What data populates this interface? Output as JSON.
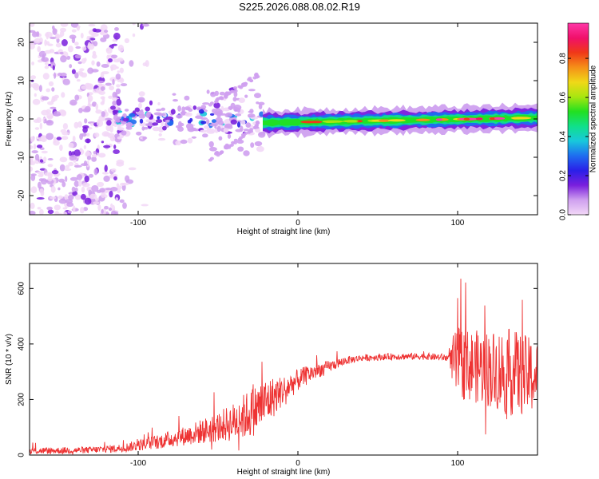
{
  "title": "S225.2026.088.08.02.R19",
  "chart_data": [
    {
      "type": "heatmap",
      "name": "spectrogram",
      "xlabel": "Height of straight line (km)",
      "ylabel": "Frequency (Hz)",
      "xlim": [
        -168,
        150
      ],
      "ylim": [
        -25,
        25
      ],
      "xticks": [
        -100,
        0,
        100
      ],
      "yticks": [
        -20,
        -10,
        0,
        10,
        20
      ],
      "colorbar": {
        "label": "Normalized spectral amplitude",
        "range": [
          0,
          0.98
        ],
        "ticks": [
          "0.0",
          "0.2",
          "0.4",
          "0.6",
          "0.8"
        ],
        "tick_values": [
          0,
          0.2,
          0.4,
          0.6,
          0.8
        ],
        "colors": [
          "#f2d8f7",
          "#cfa0ef",
          "#7a1fdd",
          "#2a1fe8",
          "#1e6df0",
          "#18c8dc",
          "#10e08a",
          "#22e020",
          "#a8e610",
          "#f0d818",
          "#f59018",
          "#f03818",
          "#f0106a",
          "#ff38a8"
        ]
      },
      "regions": [
        {
          "name": "noise",
          "x": [
            -168,
            -110
          ],
          "freq_spread_hz": 25,
          "amplitude": 0.1
        },
        {
          "name": "chirp-onset",
          "x": [
            -115,
            -22
          ],
          "freq_spread_hz": 8,
          "amplitude": 0.2
        },
        {
          "name": "tone",
          "x": [
            -20,
            150
          ],
          "center_freq_hz": [
            -1,
            0.3
          ],
          "amplitude": [
            0.3,
            0.8
          ]
        }
      ]
    },
    {
      "type": "line",
      "name": "snr",
      "xlabel": "Height of straight line (km)",
      "ylabel": "SNR (10 * v/v)",
      "xlim": [
        -168,
        150
      ],
      "ylim": [
        0,
        690
      ],
      "xticks": [
        -100,
        0,
        100
      ],
      "yticks": [
        0,
        200,
        400,
        600
      ],
      "color": "#ee3333",
      "anchors": {
        "x": [
          -168,
          -130,
          -110,
          -90,
          -70,
          -50,
          -40,
          -30,
          -20,
          -10,
          0,
          10,
          20,
          30,
          40,
          60,
          80,
          95,
          97,
          100,
          110,
          120,
          130,
          140,
          150
        ],
        "y": [
          15,
          18,
          25,
          45,
          70,
          100,
          120,
          150,
          190,
          230,
          270,
          300,
          320,
          340,
          350,
          355,
          355,
          350,
          330,
          330,
          320,
          310,
          300,
          290,
          280
        ],
        "amp": [
          12,
          12,
          15,
          25,
          35,
          55,
          70,
          90,
          90,
          55,
          40,
          30,
          20,
          15,
          12,
          12,
          12,
          14,
          100,
          130,
          130,
          140,
          160,
          150,
          130
        ]
      }
    }
  ]
}
